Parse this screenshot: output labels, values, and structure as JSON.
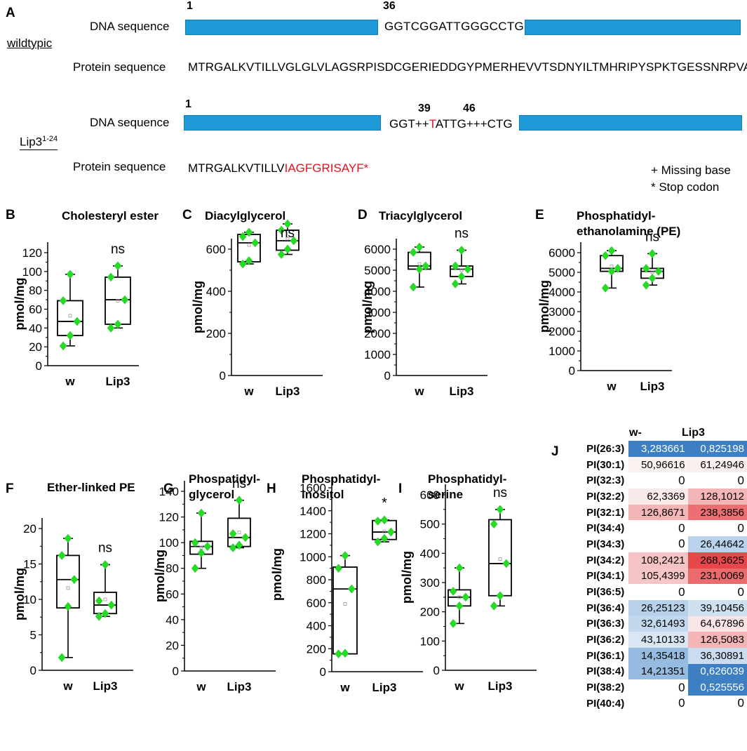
{
  "panel_a": {
    "label": "A",
    "wildtype": {
      "group_label": "wildtypic",
      "dna_label": "DNA sequence",
      "protein_label": "Protein sequence",
      "pos_start": "1",
      "pos_mid": "36",
      "dna_mid": "GGTCGGATTGGGCCTG",
      "protein": "MTRGALKVTILLVGLGLVLAGSRPISDCGERIEDDGYPMERHEVVTSDNYILTMHRIPYSPKTGESSNRPVA"
    },
    "mutant": {
      "group_label": "Lip3",
      "group_superscript": "1-24",
      "dna_label": "DNA sequence",
      "protein_label": "Protein sequence",
      "pos_start": "1",
      "pos_39": "39",
      "pos_46": "46",
      "dna_mid_a": "GGT++",
      "dna_mid_red": "T",
      "dna_mid_b": "ATTG+++CTG",
      "protein_black": "MTRGALKVTILLV",
      "protein_red": "IAGFGRISAYF*"
    },
    "legend_missing": "+ Missing base",
    "legend_stop": "* Stop codon"
  },
  "colors": {
    "dna_bar": "#1e9bd6",
    "point": "#22dd22",
    "mutation": "#e8101a",
    "heat_blue": "#3d7fc2",
    "heat_red": "#e8474a"
  },
  "chart_data": [
    {
      "id": "B",
      "type": "box",
      "letter": "B",
      "title": [
        "Cholesteryl ester"
      ],
      "ylabel": "pmol/mg",
      "ylim": [
        0,
        120
      ],
      "yticks": [
        0,
        20,
        40,
        60,
        80,
        100,
        120
      ],
      "categories": [
        "w",
        "Lip3"
      ],
      "sig": "ns",
      "boxes": [
        {
          "min": 21,
          "q1": 32,
          "median": 47,
          "q3": 69,
          "max": 97,
          "mean": 53,
          "points": [
            21,
            32,
            47,
            69,
            97
          ]
        },
        {
          "min": 40,
          "q1": 44,
          "median": 70,
          "q3": 94,
          "max": 106,
          "mean": 69,
          "points": [
            40,
            44,
            70,
            94,
            106
          ]
        }
      ]
    },
    {
      "id": "C",
      "type": "box",
      "letter": "C",
      "title": [
        "Diacylglycerol"
      ],
      "ylabel": "pmol/mg",
      "ylim": [
        0,
        700
      ],
      "yticks": [
        0,
        200,
        400,
        600
      ],
      "categories": [
        "w",
        "Lip3"
      ],
      "sig": "ns",
      "boxes": [
        {
          "min": 530,
          "q1": 540,
          "median": 630,
          "q3": 670,
          "max": 680,
          "mean": 620,
          "points": [
            530,
            545,
            630,
            660,
            680
          ]
        },
        {
          "min": 575,
          "q1": 595,
          "median": 640,
          "q3": 690,
          "max": 720,
          "mean": 650,
          "points": [
            575,
            600,
            640,
            690,
            720
          ]
        }
      ]
    },
    {
      "id": "D",
      "type": "box",
      "letter": "D",
      "title": [
        "Triacylglycerol"
      ],
      "ylabel": "pmol/mg",
      "ylim": [
        0,
        6500
      ],
      "yticks": [
        0,
        1000,
        2000,
        3000,
        4000,
        5000,
        6000
      ],
      "categories": [
        "w",
        "Lip3"
      ],
      "sig": "ns",
      "boxes": [
        {
          "min": 4200,
          "q1": 5050,
          "median": 5200,
          "q3": 5850,
          "max": 6100,
          "mean": 5300,
          "points": [
            4200,
            5050,
            5200,
            5850,
            6100
          ]
        },
        {
          "min": 4350,
          "q1": 4700,
          "median": 5050,
          "q3": 5200,
          "max": 5950,
          "mean": 5000,
          "points": [
            4350,
            4700,
            5050,
            5200,
            5950
          ]
        }
      ]
    },
    {
      "id": "E",
      "type": "box",
      "letter": "E",
      "title": [
        "Phosphatidyl-",
        "ethanolamine (PE)"
      ],
      "ylabel": "pmol/mg",
      "ylim": [
        0,
        6500
      ],
      "yticks": [
        0,
        1000,
        2000,
        3000,
        4000,
        5000,
        6000
      ],
      "categories": [
        "w",
        "Lip3"
      ],
      "sig": "ns",
      "boxes": [
        {
          "min": 4200,
          "q1": 5050,
          "median": 5200,
          "q3": 5850,
          "max": 6100,
          "mean": 5300,
          "points": [
            4200,
            5050,
            5200,
            5850,
            6100
          ]
        },
        {
          "min": 4350,
          "q1": 4700,
          "median": 5050,
          "q3": 5200,
          "max": 5950,
          "mean": 5000,
          "points": [
            4350,
            4700,
            5050,
            5200,
            5950
          ]
        }
      ]
    },
    {
      "id": "F",
      "type": "box",
      "letter": "F",
      "title": [
        "Ether-linked PE"
      ],
      "ylabel": "pmol/mg",
      "ylim": [
        0,
        20
      ],
      "yticks": [
        0,
        5,
        10,
        15,
        20
      ],
      "categories": [
        "w",
        "Lip3"
      ],
      "sig": "ns",
      "boxes": [
        {
          "min": 1.8,
          "q1": 8.8,
          "median": 12.8,
          "q3": 16.2,
          "max": 18.6,
          "mean": 11.6,
          "points": [
            1.8,
            9,
            12.8,
            16.2,
            18.6
          ]
        },
        {
          "min": 7.6,
          "q1": 8,
          "median": 9.2,
          "q3": 11,
          "max": 14.9,
          "mean": 10,
          "points": [
            7.6,
            8,
            9.2,
            9.8,
            14.9
          ]
        }
      ]
    },
    {
      "id": "G",
      "type": "box",
      "letter": "G",
      "title": [
        "Phospatidyl-",
        "glycerol"
      ],
      "ylabel": "pmol/mg",
      "ylim": [
        0,
        145
      ],
      "yticks": [
        0,
        20,
        40,
        60,
        80,
        100,
        120,
        140
      ],
      "categories": [
        "w",
        "Lip3"
      ],
      "sig": "ns",
      "boxes": [
        {
          "min": 80,
          "q1": 91,
          "median": 97,
          "q3": 101,
          "max": 123,
          "mean": 96,
          "points": [
            80,
            92,
            97,
            100,
            123
          ]
        },
        {
          "min": 96,
          "q1": 97,
          "median": 104,
          "q3": 119,
          "max": 133,
          "mean": 108,
          "points": [
            96,
            98,
            104,
            107,
            133
          ]
        }
      ]
    },
    {
      "id": "H",
      "type": "box",
      "letter": "H",
      "title": [
        "Phosphatidyl-",
        "inositol"
      ],
      "ylabel": "pmol/mg",
      "ylim": [
        0,
        1650
      ],
      "yticks": [
        0,
        200,
        400,
        600,
        800,
        1000,
        1200,
        1400,
        1600
      ],
      "categories": [
        "w",
        "Lip3"
      ],
      "sig": "*",
      "boxes": [
        {
          "min": 155,
          "q1": 155,
          "median": 720,
          "q3": 910,
          "max": 1010,
          "mean": 590,
          "points": [
            155,
            160,
            720,
            900,
            1010
          ]
        },
        {
          "min": 1130,
          "q1": 1150,
          "median": 1215,
          "q3": 1315,
          "max": 1320,
          "mean": 1220,
          "points": [
            1130,
            1160,
            1215,
            1310,
            1320
          ]
        }
      ]
    },
    {
      "id": "I",
      "type": "box",
      "letter": "I",
      "title": [
        "Phosphatidyl-",
        "serine"
      ],
      "ylabel": "pmol/mg",
      "ylim": [
        0,
        650
      ],
      "yticks": [
        0,
        100,
        200,
        300,
        400,
        500,
        600
      ],
      "categories": [
        "w",
        "Lip3"
      ],
      "sig": "ns",
      "boxes": [
        {
          "min": 160,
          "q1": 220,
          "median": 250,
          "q3": 275,
          "max": 350,
          "mean": 250,
          "points": [
            160,
            220,
            250,
            270,
            350
          ]
        },
        {
          "min": 220,
          "q1": 255,
          "median": 365,
          "q3": 515,
          "max": 550,
          "mean": 380,
          "points": [
            220,
            255,
            365,
            500,
            550
          ]
        }
      ]
    },
    {
      "id": "J",
      "type": "heatmap",
      "letter": "J",
      "columns": [
        "w-",
        "Lip3"
      ],
      "rows": [
        {
          "label": "PI(26:3)",
          "values": [
            "3,283661",
            "0,825198"
          ],
          "colors": [
            "#3d7fc2",
            "#3d7fc2"
          ],
          "text_colors": [
            "#fff",
            "#fff"
          ]
        },
        {
          "label": "PI(30:1)",
          "values": [
            "50,96616",
            "61,24946"
          ],
          "colors": [
            "#faf1f1",
            "#f9efef"
          ],
          "text_colors": [
            "#000",
            "#000"
          ]
        },
        {
          "label": "PI(32:3)",
          "values": [
            "0",
            "0"
          ],
          "colors": [
            "#ffffff",
            "#ffffff"
          ],
          "text_colors": [
            "#000",
            "#000"
          ]
        },
        {
          "label": "PI(32:2)",
          "values": [
            "62,3369",
            "128,1012"
          ],
          "colors": [
            "#fbeaea",
            "#f4b5b6"
          ],
          "text_colors": [
            "#000",
            "#000"
          ]
        },
        {
          "label": "PI(32:1)",
          "values": [
            "126,8671",
            "238,3856"
          ],
          "colors": [
            "#f4b5b6",
            "#ec6f71"
          ],
          "text_colors": [
            "#000",
            "#000"
          ]
        },
        {
          "label": "PI(34:4)",
          "values": [
            "0",
            "0"
          ],
          "colors": [
            "#ffffff",
            "#ffffff"
          ],
          "text_colors": [
            "#000",
            "#000"
          ]
        },
        {
          "label": "PI(34:3)",
          "values": [
            "0",
            "26,44642"
          ],
          "colors": [
            "#ffffff",
            "#b9d3ec"
          ],
          "text_colors": [
            "#000",
            "#000"
          ]
        },
        {
          "label": "PI(34:2)",
          "values": [
            "108,2421",
            "268,3625"
          ],
          "colors": [
            "#f6c3c4",
            "#e8474a"
          ],
          "text_colors": [
            "#000",
            "#000"
          ]
        },
        {
          "label": "PI(34:1)",
          "values": [
            "105,4399",
            "231,0069"
          ],
          "colors": [
            "#f6c6c7",
            "#eb6b6d"
          ],
          "text_colors": [
            "#000",
            "#000"
          ]
        },
        {
          "label": "PI(36:5)",
          "values": [
            "0",
            "0"
          ],
          "colors": [
            "#ffffff",
            "#ffffff"
          ],
          "text_colors": [
            "#000",
            "#000"
          ]
        },
        {
          "label": "PI(36:4)",
          "values": [
            "26,25123",
            "39,10456"
          ],
          "colors": [
            "#b7d1eb",
            "#cfe0f1"
          ],
          "text_colors": [
            "#000",
            "#000"
          ]
        },
        {
          "label": "PI(36:3)",
          "values": [
            "32,61493",
            "64,67896"
          ],
          "colors": [
            "#c2d8ee",
            "#fae5e5"
          ],
          "text_colors": [
            "#000",
            "#000"
          ]
        },
        {
          "label": "PI(36:2)",
          "values": [
            "43,10133",
            "126,5083"
          ],
          "colors": [
            "#d9e6f4",
            "#f4b5b6"
          ],
          "text_colors": [
            "#000",
            "#000"
          ]
        },
        {
          "label": "PI(36:1)",
          "values": [
            "14,35418",
            "36,30891"
          ],
          "colors": [
            "#95bce0",
            "#cbdcf0"
          ],
          "text_colors": [
            "#000",
            "#000"
          ]
        },
        {
          "label": "PI(38:4)",
          "values": [
            "14,21351",
            "0,626039"
          ],
          "colors": [
            "#95bce0",
            "#3d7fc2"
          ],
          "text_colors": [
            "#000",
            "#fff"
          ]
        },
        {
          "label": "PI(38:2)",
          "values": [
            "0",
            "0,525556"
          ],
          "colors": [
            "#ffffff",
            "#3d7fc2"
          ],
          "text_colors": [
            "#000",
            "#fff"
          ]
        },
        {
          "label": "PI(40:4)",
          "values": [
            "0",
            "0"
          ],
          "colors": [
            "#ffffff",
            "#ffffff"
          ],
          "text_colors": [
            "#000",
            "#000"
          ]
        }
      ]
    }
  ]
}
